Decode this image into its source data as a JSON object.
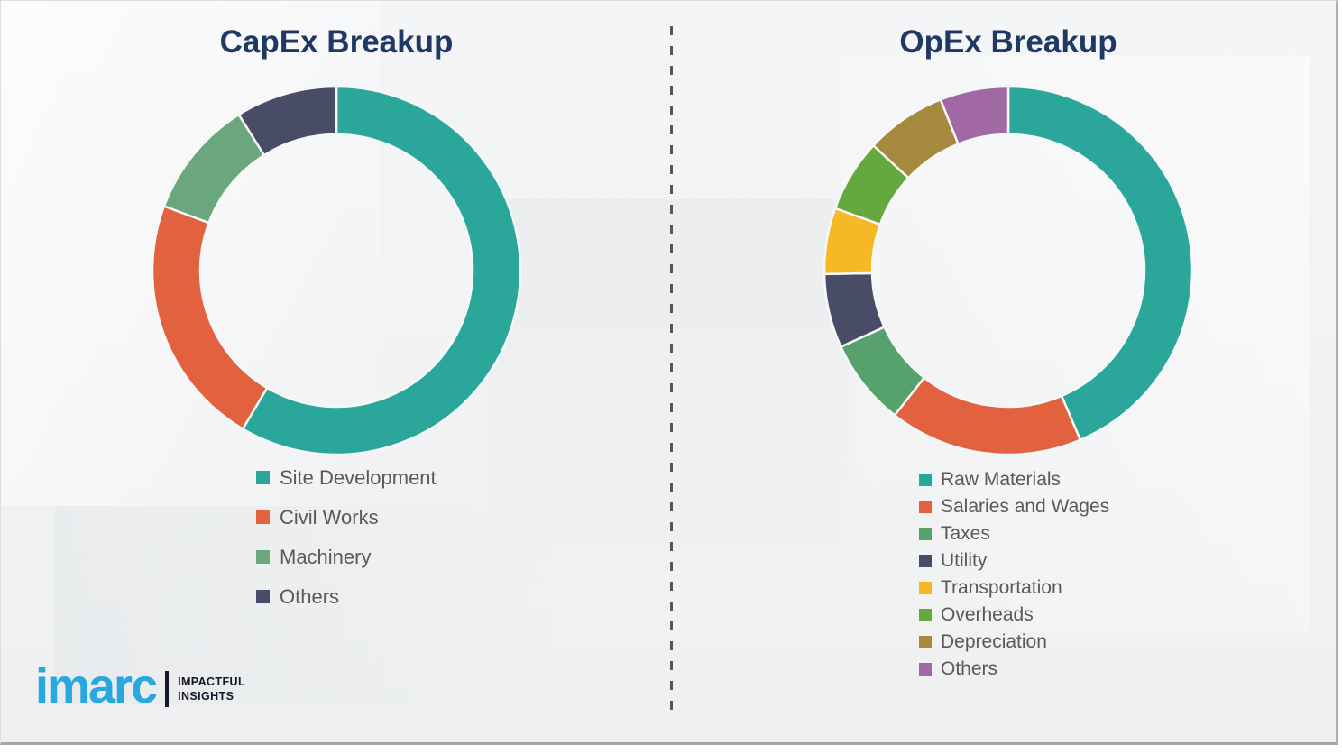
{
  "chart_data": [
    {
      "type": "pie",
      "subtype": "donut",
      "title": "CapEx Breakup",
      "value_unit": "percent-estimated",
      "legend_position": "below-left",
      "data_labels_shown": false,
      "segments": [
        {
          "label": "Site Development",
          "value_pct": 58.5,
          "color": "#2aa79a"
        },
        {
          "label": "Civil Works",
          "value_pct": 22.2,
          "color": "#e2613e"
        },
        {
          "label": "Machinery",
          "value_pct": 10.4,
          "color": "#6aa77d"
        },
        {
          "label": "Others",
          "value_pct": 8.9,
          "color": "#484c66"
        }
      ]
    },
    {
      "type": "pie",
      "subtype": "donut",
      "title": "OpEx Breakup",
      "value_unit": "percent-estimated",
      "legend_position": "below-left",
      "data_labels_shown": false,
      "segments": [
        {
          "label": "Raw Materials",
          "value_pct": 43.6,
          "color": "#2aa79a"
        },
        {
          "label": "Salaries and Wages",
          "value_pct": 17.0,
          "color": "#e2613e"
        },
        {
          "label": "Taxes",
          "value_pct": 7.6,
          "color": "#57a16d"
        },
        {
          "label": "Utility",
          "value_pct": 6.5,
          "color": "#484c66"
        },
        {
          "label": "Transportation",
          "value_pct": 5.8,
          "color": "#f6b824"
        },
        {
          "label": "Overheads",
          "value_pct": 6.4,
          "color": "#64a83e"
        },
        {
          "label": "Depreciation",
          "value_pct": 7.1,
          "color": "#a58a3e"
        },
        {
          "label": "Others",
          "value_pct": 6.0,
          "color": "#a169a4"
        }
      ]
    }
  ],
  "logo": {
    "wordmark": "imarc",
    "tagline_line1": "IMPACTFUL",
    "tagline_line2": "INSIGHTS"
  },
  "colors": {
    "title_text": "#1f3864",
    "legend_text": "#595959",
    "background": "#f2f3f4",
    "divider": "#55565a",
    "logo_blue": "#29a8e0",
    "logo_dark": "#16162b",
    "segment_gap": "#f6f7f8"
  }
}
